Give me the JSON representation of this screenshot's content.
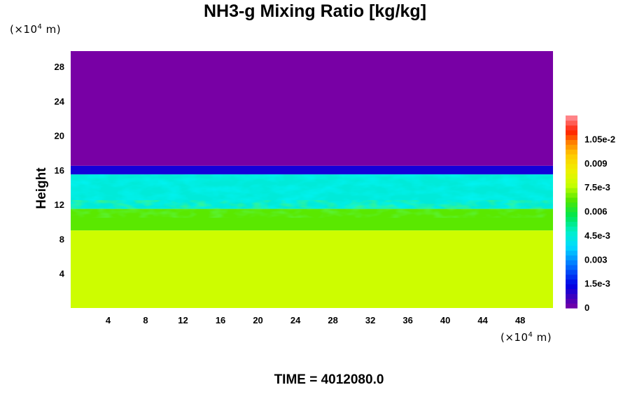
{
  "title": "NH3-g Mixing Ratio [kg/kg]",
  "y_unit": {
    "prefix": "(×10",
    "exp": "4",
    "suffix": " m)"
  },
  "x_unit": {
    "prefix": "(×10",
    "exp": "4",
    "suffix": " m)"
  },
  "time_label": "TIME = 4012080.0",
  "chart_data": {
    "type": "heatmap",
    "title": "NH3-g Mixing Ratio [kg/kg]",
    "xlabel": "",
    "ylabel": "Height",
    "x_unit": "(×10^4 m)",
    "y_unit": "(×10^4 m)",
    "xlim": [
      0,
      51.5
    ],
    "ylim": [
      0,
      29.8
    ],
    "x_ticks": [
      "4",
      "8",
      "12",
      "16",
      "20",
      "24",
      "28",
      "32",
      "36",
      "40",
      "44",
      "48"
    ],
    "y_ticks": [
      "4",
      "8",
      "12",
      "16",
      "20",
      "24",
      "28"
    ],
    "colorbar": {
      "min": 0,
      "max": 0.012,
      "labels": [
        "0",
        "1.5e-3",
        "0.003",
        "4.5e-3",
        "0.006",
        "7.5e-3",
        "0.009",
        "1.05e-2"
      ],
      "label_values": [
        0,
        0.0015,
        0.003,
        0.0045,
        0.006,
        0.0075,
        0.009,
        0.0105
      ]
    },
    "layers": [
      {
        "description": "lower layer",
        "y_range": [
          0,
          9
        ],
        "value": 0.0078
      },
      {
        "description": "transition layer",
        "y_range": [
          9,
          11.5
        ],
        "value": 0.0068
      },
      {
        "description": "mixed turbulent layer",
        "y_range": [
          11.5,
          15.5
        ],
        "value": 0.0045
      },
      {
        "description": "thin depleted band at interface",
        "y_range": [
          15.5,
          16.5
        ],
        "value": 0.0012
      },
      {
        "description": "upper layer",
        "y_range": [
          16.5,
          29.8
        ],
        "value": 0.0
      }
    ],
    "grid": false,
    "legend": "colorbar right"
  }
}
